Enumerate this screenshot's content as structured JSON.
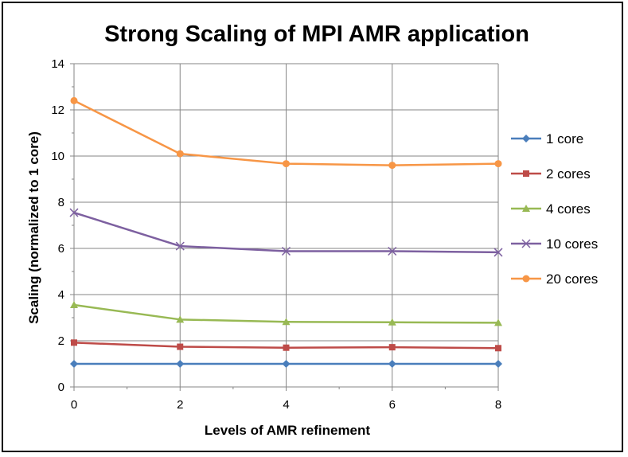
{
  "chart_data": {
    "type": "line",
    "title": "Strong Scaling of MPI AMR application",
    "xlabel": "Levels of AMR refinement",
    "ylabel": "Scaling (normalized to 1 core)",
    "x": [
      0,
      2,
      4,
      6,
      8
    ],
    "x_ticks": [
      "0",
      "2",
      "4",
      "6",
      "8"
    ],
    "xlim": [
      0,
      8
    ],
    "ylim": [
      0,
      14
    ],
    "y_ticks": [
      "0",
      "2",
      "4",
      "6",
      "8",
      "10",
      "12",
      "14"
    ],
    "grid": "vertical",
    "legend_position": "right",
    "series": [
      {
        "name": "1 core",
        "color": "#4A7EBB",
        "marker": "diamond",
        "values": [
          1.0,
          1.0,
          1.0,
          1.0,
          1.0
        ]
      },
      {
        "name": "2 cores",
        "color": "#BE4B48",
        "marker": "square",
        "values": [
          1.92,
          1.74,
          1.7,
          1.72,
          1.68
        ]
      },
      {
        "name": "4 cores",
        "color": "#98B954",
        "marker": "triangle",
        "values": [
          3.55,
          2.92,
          2.82,
          2.8,
          2.78
        ]
      },
      {
        "name": "10 cores",
        "color": "#7D60A0",
        "marker": "x",
        "values": [
          7.55,
          6.1,
          5.88,
          5.88,
          5.83
        ]
      },
      {
        "name": "20 cores",
        "color": "#F79646",
        "marker": "circle",
        "values": [
          12.4,
          10.1,
          9.67,
          9.6,
          9.67
        ]
      }
    ]
  }
}
